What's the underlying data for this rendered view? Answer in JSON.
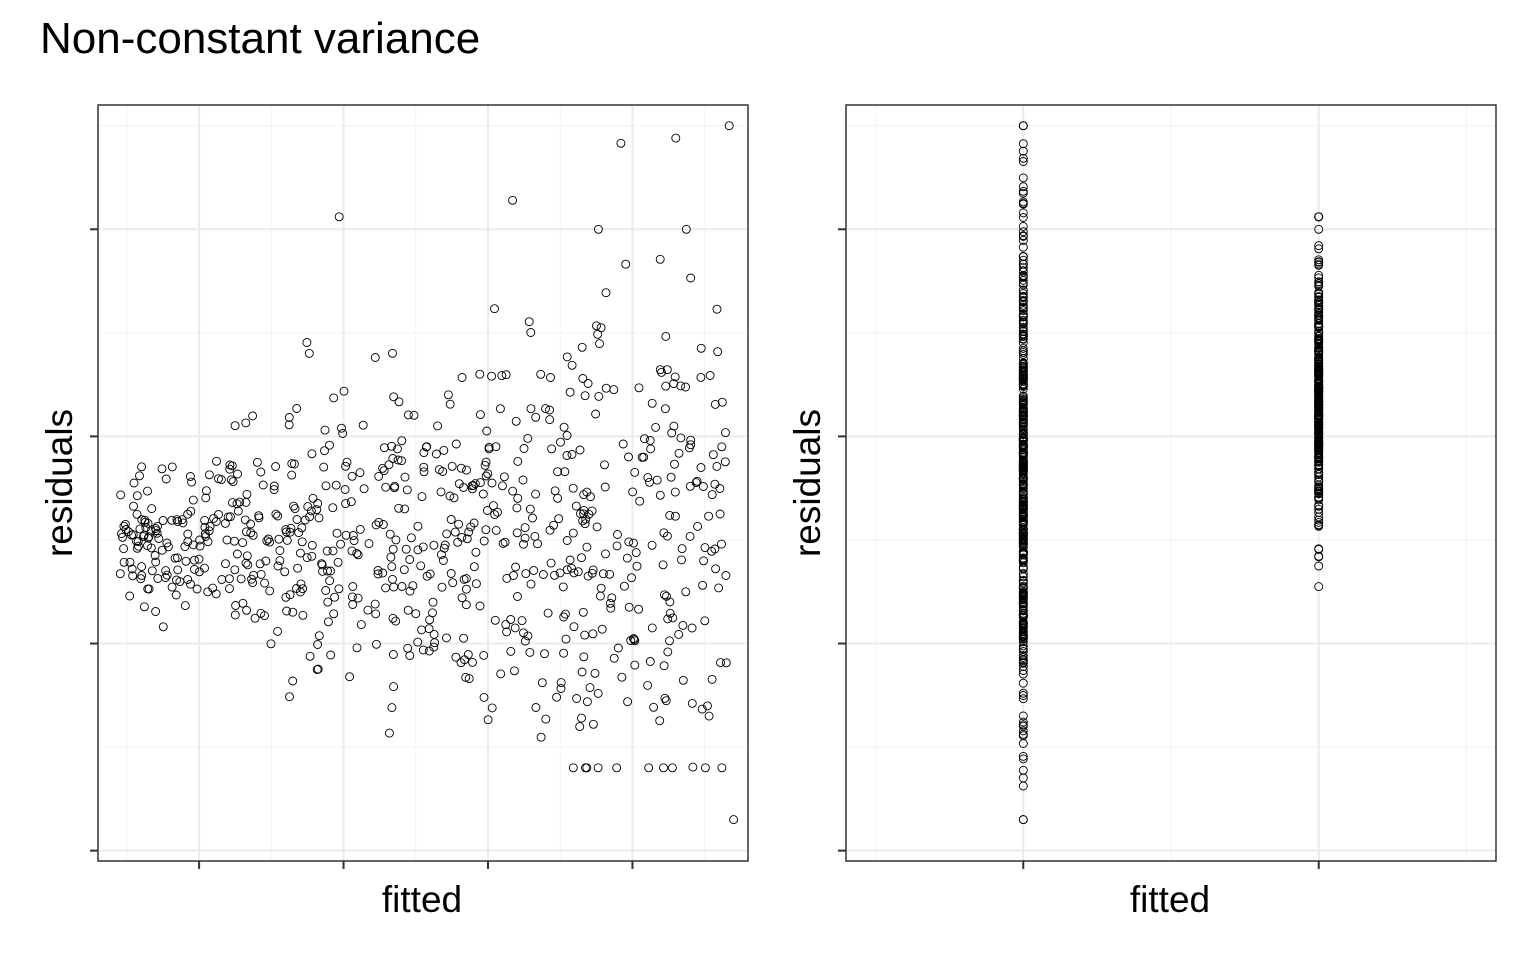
{
  "title": "Non-constant variance",
  "chart_data": [
    {
      "type": "scatter",
      "xlabel": "fitted",
      "ylabel": "residuals",
      "xlim": [
        -1.2,
        3.3
      ],
      "ylim": [
        -3.1,
        4.2
      ],
      "x_ticks": [
        -0.5,
        0.5,
        1.5,
        2.5
      ],
      "y_ticks": [
        -3,
        -1,
        1,
        3
      ],
      "tick_labels_shown": false,
      "grid": true,
      "generator": "x = uniform(-1.05, 3.15); residual = normal(0, 0.25 + 0.28*(x+1.05))",
      "n_points": 750,
      "extreme_points": [
        {
          "x": 0.47,
          "y": 3.12
        },
        {
          "x": 3.17,
          "y": 4.0
        },
        {
          "x": 2.8,
          "y": 3.88
        },
        {
          "x": 2.42,
          "y": 3.83
        },
        {
          "x": 1.67,
          "y": 3.28
        },
        {
          "x": 1.9,
          "y": -1.73
        },
        {
          "x": 2.23,
          "y": -1.78
        },
        {
          "x": 3.2,
          "y": -2.7
        },
        {
          "x": 0.1,
          "y": 0.1
        }
      ]
    },
    {
      "type": "scatter",
      "xlabel": "fitted",
      "ylabel": "residuals",
      "xlim": [
        -0.6,
        1.6
      ],
      "ylim": [
        -3.1,
        4.2
      ],
      "x_ticks": [
        0,
        1
      ],
      "y_ticks": [
        -3,
        -1,
        1,
        3
      ],
      "tick_labels_shown": false,
      "grid": true,
      "groups": [
        {
          "x": 0,
          "residual_range": [
            -2.7,
            4.0
          ],
          "n_points": 420
        },
        {
          "x": 1,
          "residual_range": [
            -0.45,
            3.12
          ],
          "n_points": 330
        }
      ]
    }
  ]
}
